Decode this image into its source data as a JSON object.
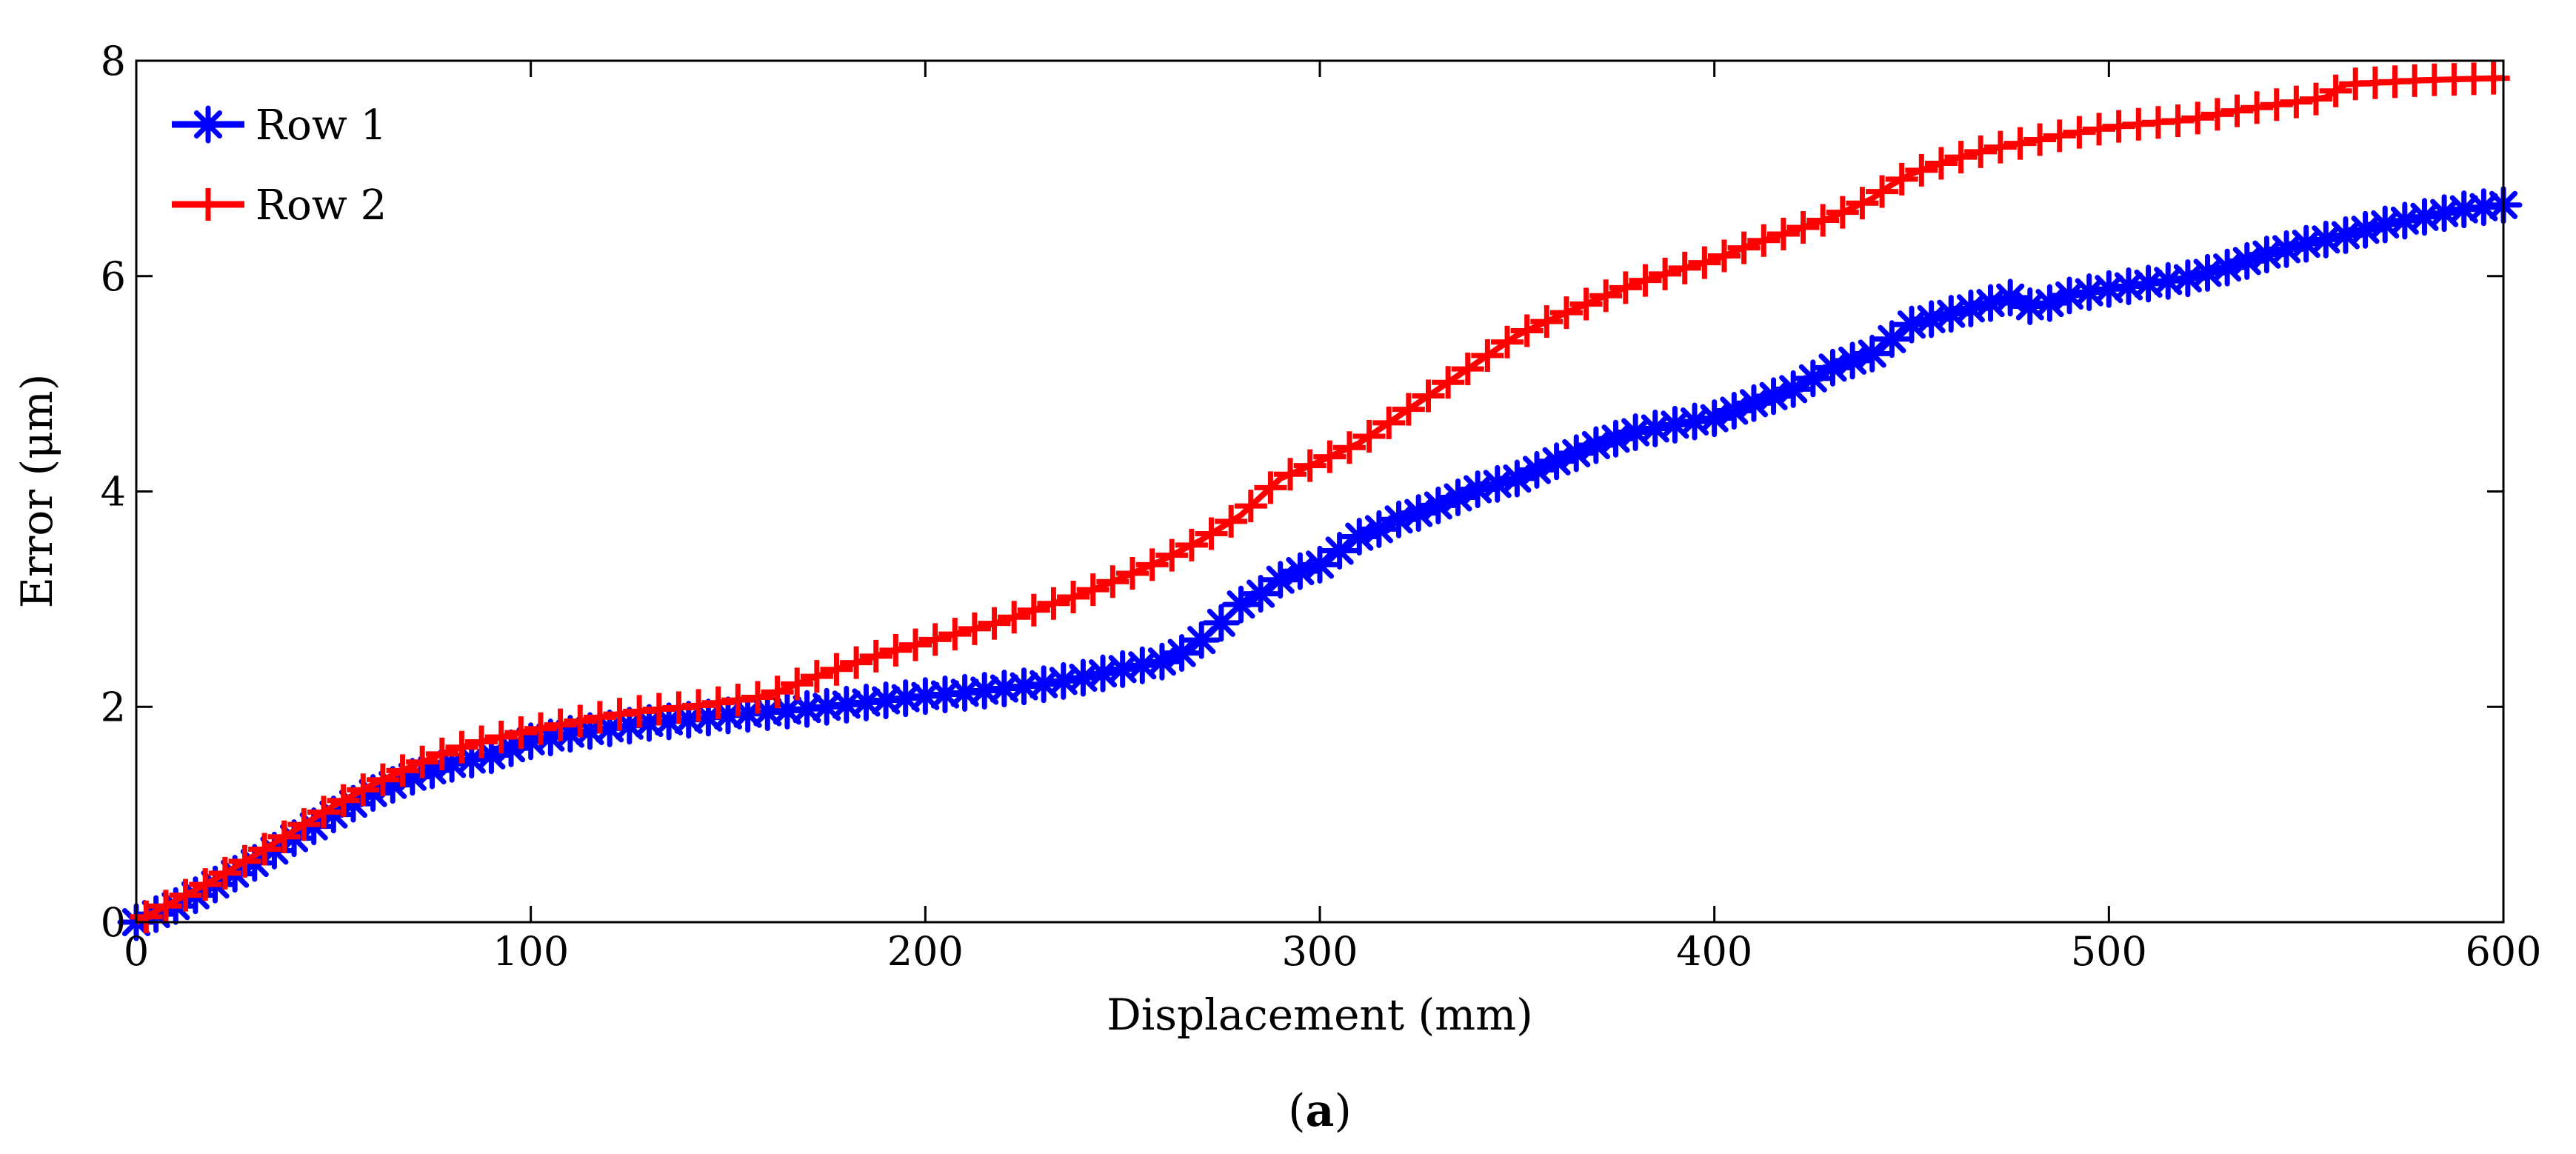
{
  "chart_data": {
    "type": "line",
    "title": "",
    "xlabel": "Displacement (mm)",
    "ylabel": "Error (μm)",
    "xlim": [
      0,
      600
    ],
    "ylim": [
      0,
      8
    ],
    "xticks": [
      "0",
      "100",
      "200",
      "300",
      "400",
      "500",
      "600"
    ],
    "yticks": [
      "0",
      "2",
      "4",
      "6",
      "8"
    ],
    "grid": false,
    "legend_position": "top-left",
    "caption": {
      "open": "(",
      "letter": "a",
      "close": ")"
    },
    "series": [
      {
        "name": "Row 1",
        "color": "#0000ff",
        "marker": "asterisk",
        "x": [
          0,
          10,
          20,
          30,
          40,
          50,
          60,
          70,
          80,
          90,
          100,
          110,
          120,
          130,
          140,
          150,
          160,
          170,
          180,
          190,
          200,
          210,
          220,
          230,
          240,
          250,
          260,
          265,
          270,
          275,
          280,
          285,
          290,
          295,
          300,
          305,
          310,
          315,
          320,
          325,
          330,
          340,
          350,
          360,
          370,
          380,
          390,
          400,
          410,
          420,
          430,
          440,
          450,
          460,
          470,
          475,
          480,
          485,
          490,
          500,
          510,
          520,
          530,
          540,
          550,
          560,
          570,
          580,
          590,
          600
        ],
        "y": [
          0,
          0.15,
          0.35,
          0.55,
          0.78,
          1.0,
          1.2,
          1.35,
          1.47,
          1.55,
          1.68,
          1.75,
          1.8,
          1.85,
          1.88,
          1.92,
          1.95,
          1.98,
          2.02,
          2.06,
          2.1,
          2.13,
          2.17,
          2.21,
          2.27,
          2.35,
          2.42,
          2.5,
          2.62,
          2.78,
          2.95,
          3.05,
          3.18,
          3.26,
          3.32,
          3.45,
          3.58,
          3.65,
          3.74,
          3.8,
          3.87,
          4.02,
          4.12,
          4.28,
          4.43,
          4.55,
          4.62,
          4.68,
          4.82,
          4.95,
          5.15,
          5.28,
          5.55,
          5.65,
          5.75,
          5.8,
          5.72,
          5.75,
          5.82,
          5.88,
          5.93,
          5.98,
          6.08,
          6.2,
          6.3,
          6.38,
          6.48,
          6.55,
          6.62,
          6.66
        ]
      },
      {
        "name": "Row 2",
        "color": "#ff0000",
        "marker": "plus",
        "x": [
          0,
          10,
          20,
          30,
          40,
          50,
          60,
          70,
          80,
          90,
          100,
          110,
          120,
          130,
          140,
          150,
          160,
          170,
          180,
          190,
          200,
          210,
          220,
          230,
          240,
          250,
          260,
          270,
          280,
          285,
          290,
          300,
          310,
          320,
          330,
          340,
          350,
          360,
          370,
          380,
          390,
          400,
          410,
          420,
          430,
          440,
          445,
          450,
          460,
          470,
          480,
          490,
          500,
          510,
          520,
          530,
          540,
          550,
          555,
          560,
          570,
          580,
          590,
          600
        ],
        "y": [
          0,
          0.2,
          0.4,
          0.62,
          0.85,
          1.08,
          1.28,
          1.45,
          1.6,
          1.7,
          1.78,
          1.85,
          1.92,
          1.97,
          2.0,
          2.05,
          2.1,
          2.25,
          2.38,
          2.5,
          2.6,
          2.7,
          2.8,
          2.93,
          3.05,
          3.2,
          3.36,
          3.55,
          3.78,
          3.95,
          4.12,
          4.28,
          4.45,
          4.7,
          4.95,
          5.2,
          5.45,
          5.62,
          5.78,
          5.93,
          6.05,
          6.15,
          6.3,
          6.42,
          6.55,
          6.72,
          6.85,
          6.95,
          7.08,
          7.18,
          7.25,
          7.32,
          7.38,
          7.42,
          7.45,
          7.52,
          7.58,
          7.63,
          7.66,
          7.78,
          7.8,
          7.82,
          7.83,
          7.84
        ]
      }
    ]
  }
}
